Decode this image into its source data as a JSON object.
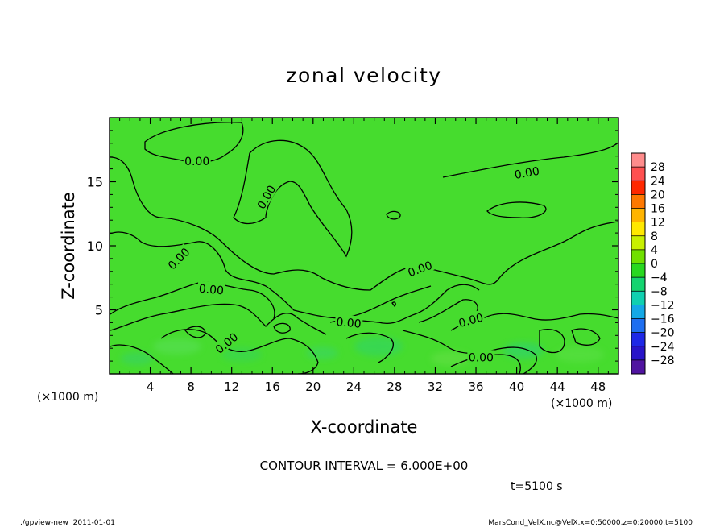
{
  "chart_data": {
    "type": "heatmap",
    "title": "zonal velocity",
    "xlabel": "X-coordinate",
    "ylabel": "Z-coordinate",
    "x_unit": "(×1000 m)",
    "y_unit": "(×1000 m)",
    "xlim": [
      0,
      50
    ],
    "ylim": [
      0,
      20
    ],
    "x_ticks": [
      "4",
      "8",
      "12",
      "16",
      "20",
      "24",
      "28",
      "32",
      "36",
      "40",
      "44",
      "48"
    ],
    "y_ticks": [
      "5",
      "10",
      "15"
    ],
    "x_tick_values": [
      4,
      8,
      12,
      16,
      20,
      24,
      28,
      32,
      36,
      40,
      44,
      48
    ],
    "y_tick_values": [
      5,
      10,
      15
    ],
    "contour_interval": "CONTOUR INTERVAL = 6.000E+00",
    "contour_labels": [
      {
        "text": "0.00",
        "x": 8.6,
        "z": 16.6,
        "angle": 0
      },
      {
        "text": "0.00",
        "x": 15.4,
        "z": 13.8,
        "angle": -60
      },
      {
        "text": "0.00",
        "x": 41.0,
        "z": 15.7,
        "angle": -10
      },
      {
        "text": "0.00",
        "x": 6.8,
        "z": 9.0,
        "angle": -45
      },
      {
        "text": "0.00",
        "x": 10.0,
        "z": 6.6,
        "angle": 5
      },
      {
        "text": "0.00",
        "x": 30.5,
        "z": 8.2,
        "angle": -20
      },
      {
        "text": "0.00",
        "x": 23.5,
        "z": 4.0,
        "angle": 5
      },
      {
        "text": "0.00",
        "x": 35.5,
        "z": 4.2,
        "angle": -15
      },
      {
        "text": "0.00",
        "x": 11.5,
        "z": 2.4,
        "angle": -40
      },
      {
        "text": "0.00",
        "x": 36.5,
        "z": 1.3,
        "angle": 0
      }
    ],
    "colorbar": {
      "levels": [
        "28",
        "24",
        "20",
        "16",
        "12",
        "8",
        "4",
        "0",
        "−4",
        "−8",
        "−12",
        "−16",
        "−20",
        "−24",
        "−28"
      ],
      "colors": [
        "#ff8c8c",
        "#ff5050",
        "#ff2800",
        "#ff7800",
        "#ffb400",
        "#ffe800",
        "#c8f000",
        "#70e000",
        "#28d820",
        "#14d470",
        "#10d0b0",
        "#14a8e6",
        "#1e6ef0",
        "#1e28e6",
        "#2814c8",
        "#5014a0"
      ]
    },
    "field_color": "#46dc2e",
    "time_label": "t=5100 s",
    "footer_left": "./gpview-new  2011-01-01",
    "footer_right": "MarsCond_VelX.nc@VelX,x=0:50000,z=0:20000,t=5100",
    "grid": false
  }
}
